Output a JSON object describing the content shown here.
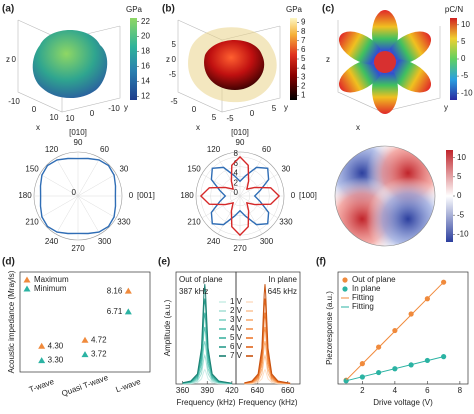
{
  "panel_labels": [
    "(a)",
    "(b)",
    "(c)",
    "(d)",
    "(e)",
    "(f)"
  ],
  "surfaces": [
    {
      "axes": {
        "z": "z",
        "x": "x",
        "y": "y"
      },
      "ticks": {
        "z": [
          0
        ],
        "x": [
          -10,
          0,
          10
        ],
        "y": [
          10,
          0,
          -10
        ]
      },
      "colorbar": {
        "label": "GPa",
        "lim": [
          11.5,
          22.5
        ],
        "ticks": [
          12,
          14,
          16,
          18,
          20,
          22
        ]
      }
    },
    {
      "axes": {
        "z": "z",
        "x": "x",
        "y": "y"
      },
      "ticks": {
        "z": [
          5,
          0,
          -5
        ],
        "x": [
          -5,
          0,
          5
        ],
        "y": [
          -5,
          0,
          5
        ]
      },
      "colorbar": {
        "label": "GPa",
        "lim": [
          0.5,
          9.5
        ],
        "ticks": [
          1,
          2,
          3,
          4,
          5,
          6,
          7,
          8,
          9
        ]
      }
    },
    {
      "axes": {
        "z": "z",
        "x": "x",
        "y": "y"
      },
      "colorbar": {
        "label": "pC/N",
        "lim": [
          -12,
          12
        ],
        "ticks": [
          10,
          5,
          0,
          -5,
          -10
        ]
      }
    }
  ],
  "heatmap": {
    "colorbar": {
      "lim": [
        -12,
        12
      ],
      "ticks": [
        10,
        5,
        0,
        -5,
        -10
      ]
    }
  },
  "chart_data": [
    {
      "type": "polar",
      "theta": [
        0,
        15,
        30,
        45,
        60,
        75,
        90,
        105,
        120,
        135,
        150,
        165,
        180,
        195,
        210,
        225,
        240,
        255,
        270,
        285,
        300,
        315,
        330,
        345
      ],
      "series": [
        {
          "color": "#2f6db5",
          "values": [
            8.5,
            8.83,
            9.48,
            9.8,
            9.48,
            8.83,
            8.5,
            8.83,
            9.48,
            9.8,
            9.48,
            8.83,
            8.5,
            8.83,
            9.48,
            9.8,
            9.48,
            8.83,
            8.5,
            8.83,
            9.48,
            9.8,
            9.48,
            8.83
          ]
        }
      ],
      "rlim": [
        0,
        10
      ],
      "rticks": [
        0
      ],
      "angle_ticks": [
        0,
        30,
        60,
        90,
        120,
        150,
        180,
        210,
        240,
        270,
        300,
        330
      ],
      "direction_labels": {
        "top": "[010]",
        "right": "[001]"
      },
      "label_color": "#2f5fb0"
    },
    {
      "type": "polar",
      "theta": [
        0,
        15,
        30,
        45,
        60,
        75,
        90,
        105,
        120,
        135,
        150,
        165,
        180,
        195,
        210,
        225,
        240,
        255,
        270,
        285,
        300,
        315,
        330,
        345
      ],
      "series": [
        {
          "color": "#2f6db5",
          "values": [
            3,
            4.25,
            6.75,
            8,
            6.75,
            4.25,
            3,
            4.25,
            6.75,
            8,
            6.75,
            4.25,
            3,
            4.25,
            6.75,
            8,
            6.75,
            4.25,
            3,
            4.25,
            6.75,
            8,
            6.75,
            4.25
          ]
        },
        {
          "color": "#d62828",
          "values": [
            8,
            6.5,
            3.5,
            2,
            3.5,
            6.5,
            8,
            6.5,
            3.5,
            2,
            3.5,
            6.5,
            8,
            6.5,
            3.5,
            2,
            3.5,
            6.5,
            8,
            6.5,
            3.5,
            2,
            3.5,
            6.5
          ]
        }
      ],
      "rlim": [
        0,
        9
      ],
      "rticks": [
        0,
        2,
        4,
        6,
        8
      ],
      "angle_ticks": [
        0,
        30,
        60,
        90,
        120,
        150,
        180,
        210,
        240,
        270,
        300,
        330
      ],
      "direction_labels": {
        "top": "[010]",
        "right": "[100]"
      },
      "label_color": "#2f5fb0"
    },
    {
      "type": "scatter",
      "categories": [
        "T-wave",
        "Quasi T-wave",
        "L-wave"
      ],
      "ylabel": "Acoustic impedance (Mrayls)",
      "ylim": [
        2.5,
        9.5
      ],
      "legend": "upper left",
      "series": [
        {
          "name": "Maximum",
          "color": "#f08a3c",
          "marker": "triangle",
          "values": [
            4.3,
            4.72,
            8.16
          ],
          "value_labels": [
            "4.30",
            "4.72",
            "8.16"
          ]
        },
        {
          "name": "Minimum",
          "color": "#2bb3a3",
          "marker": "triangle",
          "values": [
            3.3,
            3.72,
            6.71
          ],
          "value_labels": [
            "3.30",
            "3.72",
            "6.71"
          ]
        }
      ]
    },
    {
      "type": "line",
      "title": "Out of plane",
      "annotation": "387 kHz",
      "xlabel": "Frequency (kHz)",
      "ylabel": "Amplitude (a.u.)",
      "x": [
        360,
        370,
        378,
        383,
        386,
        387,
        388,
        391,
        396,
        404,
        420
      ],
      "xlim": [
        352,
        425
      ],
      "xticks": [
        360,
        390,
        420
      ],
      "ylim": [
        0,
        1.1
      ],
      "series": [
        {
          "name": "1 V",
          "color": "#cdeee8",
          "values": [
            0.002,
            0.004,
            0.014,
            0.05,
            0.126,
            0.14,
            0.126,
            0.05,
            0.014,
            0.004,
            0.001
          ]
        },
        {
          "name": "2 V",
          "color": "#a8e1d7",
          "values": [
            0.003,
            0.008,
            0.028,
            0.101,
            0.252,
            0.28,
            0.252,
            0.101,
            0.028,
            0.008,
            0.002
          ]
        },
        {
          "name": "3 V",
          "color": "#82d3c6",
          "values": [
            0.005,
            0.013,
            0.042,
            0.151,
            0.378,
            0.42,
            0.378,
            0.151,
            0.042,
            0.013,
            0.003
          ]
        },
        {
          "name": "4 V",
          "color": "#5cc4b4",
          "values": [
            0.007,
            0.017,
            0.056,
            0.202,
            0.504,
            0.56,
            0.504,
            0.202,
            0.056,
            0.017,
            0.004
          ]
        },
        {
          "name": "5 V",
          "color": "#3fb3a2",
          "values": [
            0.008,
            0.021,
            0.07,
            0.252,
            0.63,
            0.7,
            0.63,
            0.252,
            0.07,
            0.021,
            0.006
          ]
        },
        {
          "name": "6 V",
          "color": "#2a9d8d",
          "values": [
            0.01,
            0.025,
            0.084,
            0.302,
            0.756,
            0.84,
            0.756,
            0.302,
            0.084,
            0.025,
            0.007
          ]
        },
        {
          "name": "7 V",
          "color": "#1a8073",
          "values": [
            0.012,
            0.029,
            0.098,
            0.353,
            0.882,
            0.98,
            0.882,
            0.353,
            0.098,
            0.029,
            0.008
          ]
        }
      ]
    },
    {
      "type": "line",
      "title": "In plane",
      "annotation": "645 kHz",
      "xlabel": "Frequency (kHz)",
      "x": [
        631.5,
        636.5,
        640.5,
        643,
        644.5,
        645,
        645.5,
        647,
        649.5,
        653.5,
        661.5
      ],
      "xlim": [
        626,
        668
      ],
      "xticks": [
        640,
        660
      ],
      "ylim": [
        0,
        1.1
      ],
      "series": [
        {
          "color": "#fde0c8",
          "values": [
            0.002,
            0.004,
            0.014,
            0.05,
            0.126,
            0.14,
            0.126,
            0.05,
            0.014,
            0.004,
            0.001
          ]
        },
        {
          "color": "#fbc79d",
          "values": [
            0.003,
            0.008,
            0.028,
            0.101,
            0.252,
            0.28,
            0.252,
            0.101,
            0.028,
            0.008,
            0.002
          ]
        },
        {
          "color": "#f8ad73",
          "values": [
            0.005,
            0.013,
            0.042,
            0.151,
            0.378,
            0.42,
            0.378,
            0.151,
            0.042,
            0.013,
            0.003
          ]
        },
        {
          "color": "#f4934d",
          "values": [
            0.007,
            0.017,
            0.056,
            0.202,
            0.504,
            0.56,
            0.504,
            0.202,
            0.056,
            0.017,
            0.004
          ]
        },
        {
          "color": "#ee7a2e",
          "values": [
            0.008,
            0.021,
            0.07,
            0.252,
            0.63,
            0.7,
            0.63,
            0.252,
            0.07,
            0.021,
            0.006
          ]
        },
        {
          "color": "#e0641a",
          "values": [
            0.01,
            0.025,
            0.084,
            0.302,
            0.756,
            0.84,
            0.756,
            0.302,
            0.084,
            0.025,
            0.007
          ]
        },
        {
          "color": "#c8520f",
          "values": [
            0.012,
            0.029,
            0.098,
            0.353,
            0.882,
            0.98,
            0.882,
            0.353,
            0.098,
            0.029,
            0.008
          ]
        }
      ]
    },
    {
      "type": "scatter",
      "xlabel": "Drive voltage (V)",
      "ylabel": "Piezoresponse (a.u.)",
      "xlim": [
        0.5,
        8.5
      ],
      "xticks": [
        2,
        4,
        6,
        8
      ],
      "ylim": [
        0,
        8.8
      ],
      "legend": "upper left",
      "series": [
        {
          "name": "Out of plane",
          "color": "#f08a3c",
          "marker": "circle",
          "x": [
            1,
            2,
            3,
            4,
            5,
            6,
            7
          ],
          "values": [
            0.3,
            1.6,
            2.9,
            4.2,
            5.5,
            6.7,
            8.0
          ]
        },
        {
          "name": "In plane",
          "color": "#2bb3a3",
          "marker": "circle",
          "x": [
            1,
            2,
            3,
            4,
            5,
            6,
            7
          ],
          "values": [
            0.25,
            0.55,
            0.9,
            1.2,
            1.5,
            1.85,
            2.15
          ]
        },
        {
          "name": "Fitting",
          "color": "#f08a3c",
          "marker": "line",
          "x": [
            1,
            7
          ],
          "values": [
            0.3,
            8.0
          ]
        },
        {
          "name": "Fitting",
          "color": "#2bb3a3",
          "marker": "line",
          "x": [
            1,
            7
          ],
          "values": [
            0.25,
            2.15
          ]
        }
      ]
    }
  ]
}
